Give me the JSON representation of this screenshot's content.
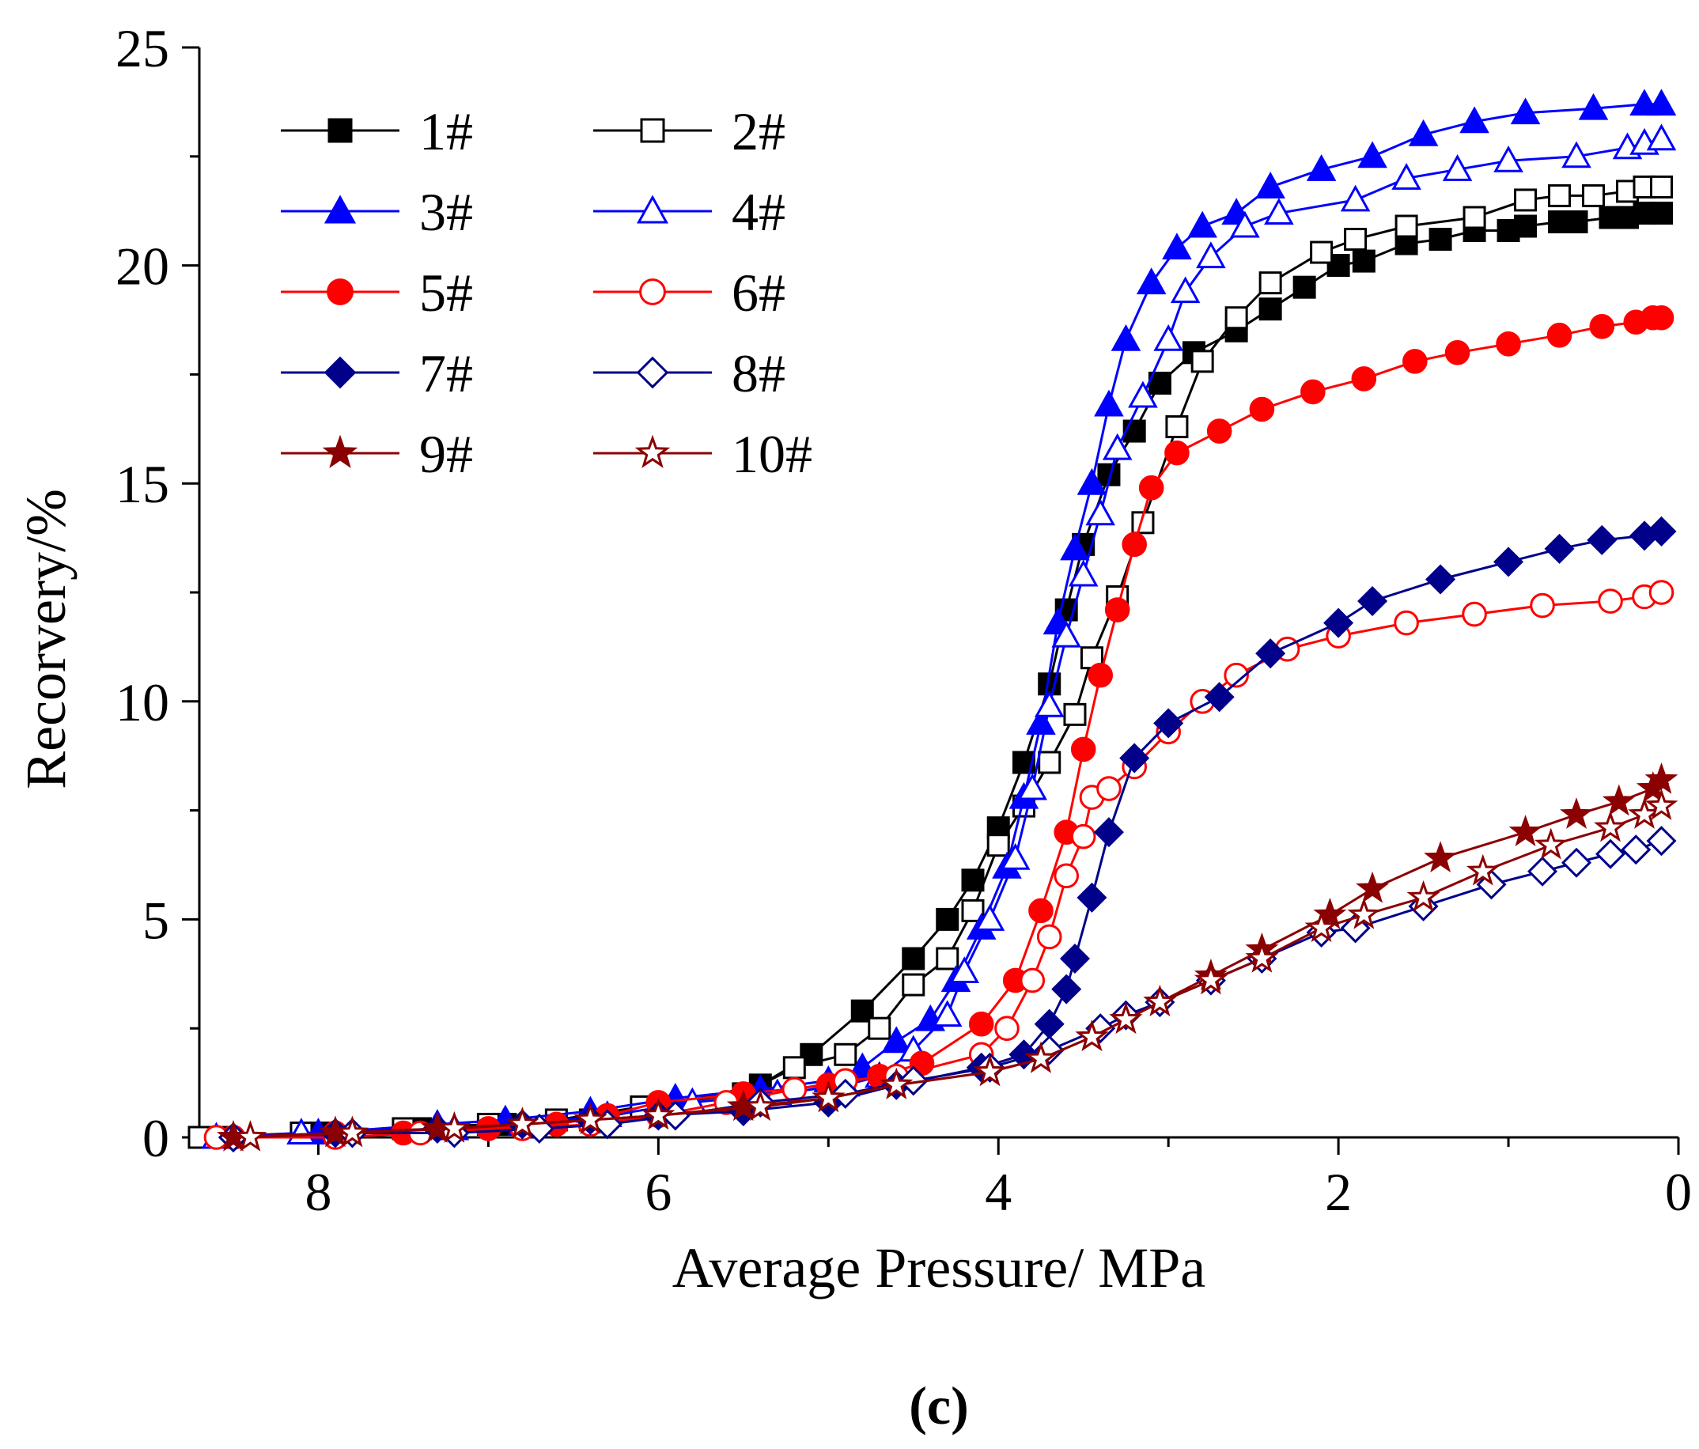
{
  "chart_data": {
    "type": "line",
    "title": "",
    "panel_label": "(c)",
    "xlabel": "Average Pressure/ MPa",
    "ylabel": "Recorvery/%",
    "xlim": [
      8.7,
      0
    ],
    "ylim": [
      0,
      25
    ],
    "x_reversed": true,
    "x_ticks": [
      8,
      6,
      4,
      2,
      0
    ],
    "x_tick_labels": [
      "8",
      "6",
      "4",
      "2",
      "0"
    ],
    "y_ticks": [
      0,
      5,
      10,
      15,
      20,
      25
    ],
    "y_tick_labels": [
      "0",
      "5",
      "10",
      "15",
      "20",
      "25"
    ],
    "grid": false,
    "legend_position": "top-left",
    "series": [
      {
        "name": "1#",
        "color": "#000000",
        "marker": "square",
        "filled": true,
        "x": [
          8.6,
          8.0,
          7.4,
          6.9,
          6.4,
          6.0,
          5.4,
          5.1,
          4.8,
          4.5,
          4.3,
          4.15,
          4.0,
          3.85,
          3.7,
          3.6,
          3.5,
          3.35,
          3.2,
          3.05,
          2.85,
          2.6,
          2.4,
          2.2,
          2.0,
          1.85,
          1.6,
          1.4,
          1.2,
          1.0,
          0.9,
          0.7,
          0.6,
          0.4,
          0.3,
          0.2,
          0.1
        ],
        "y": [
          0.0,
          0.1,
          0.2,
          0.3,
          0.4,
          0.7,
          1.2,
          1.9,
          2.9,
          4.1,
          5.0,
          5.9,
          7.1,
          8.6,
          10.4,
          12.1,
          13.6,
          15.2,
          16.2,
          17.3,
          18.0,
          18.5,
          19.0,
          19.5,
          20.0,
          20.1,
          20.5,
          20.6,
          20.8,
          20.8,
          20.9,
          21.0,
          21.0,
          21.1,
          21.1,
          21.2,
          21.2
        ]
      },
      {
        "name": "2#",
        "color": "#000000",
        "marker": "square",
        "filled": false,
        "x": [
          8.7,
          8.1,
          7.5,
          7.0,
          6.6,
          6.1,
          5.5,
          5.2,
          4.9,
          4.7,
          4.5,
          4.3,
          4.15,
          4.0,
          3.85,
          3.7,
          3.55,
          3.45,
          3.3,
          3.15,
          2.95,
          2.8,
          2.6,
          2.4,
          2.1,
          1.9,
          1.6,
          1.2,
          0.9,
          0.7,
          0.5,
          0.3,
          0.2,
          0.1
        ],
        "y": [
          0.0,
          0.1,
          0.2,
          0.3,
          0.4,
          0.7,
          1.0,
          1.6,
          1.9,
          2.5,
          3.5,
          4.1,
          5.2,
          6.7,
          7.6,
          8.6,
          9.7,
          11.0,
          12.4,
          14.1,
          16.3,
          17.8,
          18.8,
          19.6,
          20.3,
          20.6,
          20.9,
          21.1,
          21.5,
          21.6,
          21.6,
          21.7,
          21.8,
          21.8
        ]
      },
      {
        "name": "3#",
        "color": "#0000ff",
        "marker": "triangle",
        "filled": true,
        "x": [
          8.6,
          8.0,
          7.3,
          6.9,
          6.4,
          5.9,
          5.4,
          5.0,
          4.8,
          4.6,
          4.4,
          4.25,
          4.1,
          3.95,
          3.85,
          3.75,
          3.65,
          3.55,
          3.45,
          3.35,
          3.25,
          3.1,
          2.95,
          2.8,
          2.6,
          2.4,
          2.1,
          1.8,
          1.5,
          1.2,
          0.9,
          0.5,
          0.2,
          0.1
        ],
        "y": [
          0.0,
          0.1,
          0.3,
          0.4,
          0.6,
          0.9,
          1.1,
          1.3,
          1.6,
          2.2,
          2.7,
          3.6,
          4.8,
          6.2,
          7.8,
          9.5,
          11.8,
          13.5,
          15.0,
          16.8,
          18.3,
          19.6,
          20.4,
          20.9,
          21.2,
          21.8,
          22.2,
          22.5,
          23.0,
          23.3,
          23.5,
          23.6,
          23.7,
          23.7
        ]
      },
      {
        "name": "4#",
        "color": "#0000ff",
        "marker": "triangle",
        "filled": false,
        "x": [
          8.6,
          8.1,
          7.2,
          6.8,
          6.3,
          5.8,
          5.3,
          4.9,
          4.7,
          4.5,
          4.3,
          4.2,
          4.05,
          3.9,
          3.8,
          3.7,
          3.6,
          3.5,
          3.4,
          3.3,
          3.15,
          3.0,
          2.9,
          2.75,
          2.55,
          2.35,
          1.9,
          1.6,
          1.3,
          1.0,
          0.6,
          0.3,
          0.2,
          0.1
        ],
        "y": [
          0.0,
          0.1,
          0.2,
          0.3,
          0.5,
          0.8,
          1.0,
          1.2,
          1.4,
          2.0,
          2.8,
          3.8,
          5.0,
          6.4,
          8.0,
          9.9,
          11.5,
          12.9,
          14.3,
          15.8,
          17.0,
          18.3,
          19.4,
          20.2,
          20.9,
          21.2,
          21.5,
          22.0,
          22.2,
          22.4,
          22.5,
          22.7,
          22.8,
          22.9
        ]
      },
      {
        "name": "5#",
        "color": "#ff0000",
        "marker": "circle",
        "filled": true,
        "x": [
          8.5,
          7.9,
          7.5,
          7.0,
          6.6,
          6.3,
          6.0,
          5.5,
          5.0,
          4.7,
          4.45,
          4.1,
          3.9,
          3.75,
          3.6,
          3.5,
          3.4,
          3.3,
          3.2,
          3.1,
          2.95,
          2.7,
          2.45,
          2.15,
          1.85,
          1.55,
          1.3,
          1.0,
          0.7,
          0.45,
          0.25,
          0.15,
          0.1
        ],
        "y": [
          0.0,
          0.1,
          0.1,
          0.2,
          0.3,
          0.5,
          0.8,
          1.0,
          1.2,
          1.4,
          1.7,
          2.6,
          3.6,
          5.2,
          7.0,
          8.9,
          10.6,
          12.1,
          13.6,
          14.9,
          15.7,
          16.2,
          16.7,
          17.1,
          17.4,
          17.8,
          18.0,
          18.2,
          18.4,
          18.6,
          18.7,
          18.8,
          18.8
        ]
      },
      {
        "name": "6#",
        "color": "#ff0000",
        "marker": "circle",
        "filled": false,
        "x": [
          8.6,
          7.9,
          7.4,
          6.8,
          6.4,
          6.0,
          5.6,
          5.2,
          4.9,
          4.6,
          4.1,
          3.95,
          3.8,
          3.7,
          3.6,
          3.5,
          3.45,
          3.35,
          3.2,
          3.0,
          2.8,
          2.6,
          2.3,
          2.0,
          1.6,
          1.2,
          0.8,
          0.4,
          0.2,
          0.1
        ],
        "y": [
          0.0,
          0.0,
          0.1,
          0.2,
          0.3,
          0.5,
          0.8,
          1.1,
          1.3,
          1.4,
          1.9,
          2.5,
          3.6,
          4.6,
          6.0,
          6.9,
          7.8,
          8.0,
          8.5,
          9.3,
          10.0,
          10.6,
          11.2,
          11.5,
          11.8,
          12.0,
          12.2,
          12.3,
          12.4,
          12.5
        ]
      },
      {
        "name": "7#",
        "color": "#00008b",
        "marker": "diamond",
        "filled": true,
        "x": [
          8.5,
          7.9,
          7.3,
          6.8,
          6.4,
          6.0,
          5.5,
          5.0,
          4.6,
          4.1,
          3.85,
          3.7,
          3.6,
          3.55,
          3.45,
          3.35,
          3.2,
          3.0,
          2.7,
          2.4,
          2.0,
          1.8,
          1.4,
          1.0,
          0.7,
          0.45,
          0.2,
          0.1
        ],
        "y": [
          0.0,
          0.1,
          0.2,
          0.3,
          0.4,
          0.5,
          0.6,
          0.8,
          1.2,
          1.6,
          1.9,
          2.6,
          3.4,
          4.1,
          5.5,
          7.0,
          8.7,
          9.5,
          10.1,
          11.1,
          11.8,
          12.3,
          12.8,
          13.2,
          13.5,
          13.7,
          13.8,
          13.9
        ]
      },
      {
        "name": "8#",
        "color": "#00008b",
        "marker": "diamond",
        "filled": false,
        "x": [
          8.5,
          7.8,
          7.2,
          6.7,
          6.3,
          5.9,
          5.4,
          4.9,
          4.5,
          4.05,
          3.7,
          3.4,
          3.25,
          3.05,
          2.75,
          2.45,
          2.1,
          1.9,
          1.5,
          1.1,
          0.8,
          0.6,
          0.4,
          0.25,
          0.1
        ],
        "y": [
          0.0,
          0.1,
          0.1,
          0.2,
          0.3,
          0.5,
          0.8,
          1.0,
          1.3,
          1.6,
          2.0,
          2.5,
          2.8,
          3.1,
          3.6,
          4.1,
          4.7,
          4.8,
          5.3,
          5.8,
          6.1,
          6.3,
          6.5,
          6.6,
          6.8
        ]
      },
      {
        "name": "9#",
        "color": "#8b0000",
        "marker": "star",
        "filled": true,
        "x": [
          8.5,
          7.9,
          7.3,
          6.8,
          6.4,
          6.0,
          5.5,
          5.0,
          4.6,
          4.05,
          3.75,
          3.45,
          3.25,
          3.05,
          2.75,
          2.45,
          2.05,
          1.8,
          1.4,
          0.9,
          0.6,
          0.35,
          0.15,
          0.1
        ],
        "y": [
          0.0,
          0.1,
          0.2,
          0.3,
          0.4,
          0.5,
          0.7,
          0.9,
          1.2,
          1.5,
          1.8,
          2.3,
          2.7,
          3.1,
          3.7,
          4.3,
          5.1,
          5.7,
          6.4,
          7.0,
          7.4,
          7.7,
          8.0,
          8.2
        ]
      },
      {
        "name": "10#",
        "color": "#8b0000",
        "marker": "star",
        "filled": false,
        "x": [
          8.4,
          7.8,
          7.2,
          6.8,
          6.4,
          6.0,
          5.4,
          5.0,
          4.6,
          4.05,
          3.75,
          3.45,
          3.25,
          3.05,
          2.75,
          2.45,
          2.1,
          1.85,
          1.5,
          1.15,
          0.75,
          0.4,
          0.2,
          0.1
        ],
        "y": [
          0.0,
          0.1,
          0.2,
          0.3,
          0.4,
          0.5,
          0.7,
          0.9,
          1.2,
          1.5,
          1.8,
          2.3,
          2.7,
          3.1,
          3.6,
          4.1,
          4.8,
          5.1,
          5.5,
          6.1,
          6.7,
          7.1,
          7.4,
          7.6
        ]
      }
    ]
  }
}
